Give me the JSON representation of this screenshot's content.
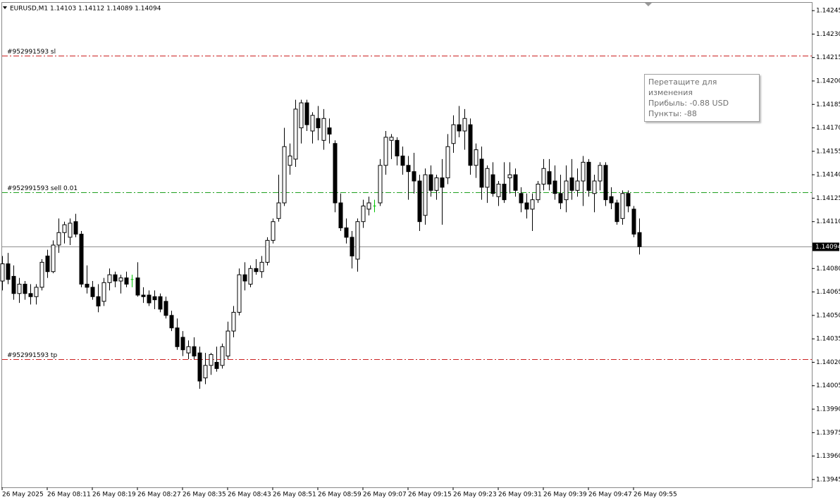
{
  "chart_data": {
    "type": "candlestick",
    "title": "EURUSD,M1  1.14103 1.14112 1.14089 1.14094",
    "categories": [
      "26 May 2025",
      null,
      null,
      null,
      null,
      null,
      null,
      null,
      "26 May 08:11",
      null,
      null,
      null,
      null,
      null,
      null,
      null,
      "26 May 08:19",
      null,
      null,
      null,
      null,
      null,
      null,
      null,
      "26 May 08:27",
      null,
      null,
      null,
      null,
      null,
      null,
      null,
      "26 May 08:35",
      null,
      null,
      null,
      null,
      null,
      null,
      null,
      "26 May 08:43",
      null,
      null,
      null,
      null,
      null,
      null,
      null,
      "26 May 08:51",
      null,
      null,
      null,
      null,
      null,
      null,
      null,
      "26 May 08:59",
      null,
      null,
      null,
      null,
      null,
      null,
      null,
      "26 May 09:07",
      null,
      null,
      null,
      null,
      null,
      null,
      null,
      "26 May 09:15",
      null,
      null,
      null,
      null,
      null,
      null,
      null,
      "26 May 09:23",
      null,
      null,
      null,
      null,
      null,
      null,
      null,
      "26 May 09:31",
      null,
      null,
      null,
      null,
      null,
      null,
      null,
      "26 May 09:39",
      null,
      null,
      null,
      null,
      null,
      null,
      null,
      "26 May 09:47",
      null,
      null,
      null,
      null,
      null,
      null,
      null,
      "26 May 09:55",
      null
    ],
    "open": [
      1.14072,
      1.14083,
      1.14075,
      1.14064,
      1.1407,
      1.14064,
      1.14062,
      1.14068,
      1.14088,
      1.14078,
      1.14095,
      1.14103,
      1.141,
      1.1411,
      1.14102,
      1.1407,
      1.14068,
      1.14062,
      1.14059,
      1.14071,
      1.14076,
      1.14072,
      1.14074,
      1.14073,
      1.14074,
      1.14063,
      1.14063,
      1.14062,
      1.14062,
      1.14059,
      1.1405,
      1.14042,
      1.14036,
      1.14026,
      1.1403,
      1.14026,
      1.1401,
      1.14018,
      1.1402,
      1.14018,
      1.14024,
      1.1404,
      1.14052,
      1.14076,
      1.1407,
      1.1408,
      1.14078,
      1.14084,
      1.14098,
      1.14112,
      1.14122,
      1.14146,
      1.1415,
      1.1417,
      1.14186,
      1.14168,
      1.14176,
      1.14162,
      1.1417,
      1.1416,
      1.14122,
      1.14106,
      1.141,
      1.14086,
      1.1411,
      1.14118,
      1.1412,
      1.14122,
      1.14146,
      1.14162,
      1.14162,
      1.14152,
      1.14146,
      1.14142,
      1.14136,
      1.14114,
      1.1414,
      1.1413,
      1.14138,
      1.14138,
      1.1416,
      1.14172,
      1.14168,
      1.14172,
      1.14146,
      1.1415,
      1.14132,
      1.1414,
      1.14126,
      1.14134,
      1.14138,
      1.1414,
      1.14128,
      1.14122,
      1.14118,
      1.14124,
      1.14134,
      1.14142,
      1.14136,
      1.14128,
      1.14124,
      1.14138,
      1.1413,
      1.14136,
      1.14148,
      1.14128,
      1.14136,
      1.14146,
      1.14126,
      1.14122,
      1.14112,
      1.14128,
      1.14118,
      1.14103
    ],
    "high": [
      1.14088,
      1.1409,
      1.14082,
      1.14074,
      1.14072,
      1.1407,
      1.1407,
      1.14086,
      1.14092,
      1.14098,
      1.14112,
      1.1411,
      1.14112,
      1.14115,
      1.14104,
      1.14082,
      1.14072,
      1.1407,
      1.14074,
      1.1408,
      1.14078,
      1.14076,
      1.14078,
      1.14076,
      1.14084,
      1.14068,
      1.14066,
      1.14066,
      1.14064,
      1.14062,
      1.14053,
      1.14048,
      1.1404,
      1.14034,
      1.14036,
      1.1403,
      1.14026,
      1.14026,
      1.1403,
      1.14032,
      1.14046,
      1.14056,
      1.1408,
      1.14084,
      1.14082,
      1.14086,
      1.14088,
      1.141,
      1.14112,
      1.1414,
      1.1417,
      1.1416,
      1.14188,
      1.14188,
      1.14188,
      1.1418,
      1.14184,
      1.14182,
      1.14176,
      1.14162,
      1.14128,
      1.14112,
      1.14104,
      1.14112,
      1.14124,
      1.14126,
      1.14124,
      1.1415,
      1.14168,
      1.14166,
      1.14164,
      1.14158,
      1.14152,
      1.14154,
      1.1414,
      1.14144,
      1.14146,
      1.1414,
      1.1415,
      1.14166,
      1.14178,
      1.14184,
      1.14182,
      1.14176,
      1.1416,
      1.14158,
      1.14146,
      1.14148,
      1.14136,
      1.14148,
      1.14148,
      1.14144,
      1.14132,
      1.14128,
      1.14128,
      1.14136,
      1.1415,
      1.1415,
      1.14146,
      1.1414,
      1.14146,
      1.1415,
      1.14144,
      1.14152,
      1.1415,
      1.1414,
      1.14148,
      1.14148,
      1.14132,
      1.14124,
      1.1413,
      1.1413,
      1.1412,
      1.14112
    ],
    "low": [
      1.14066,
      1.1407,
      1.1406,
      1.14058,
      1.1406,
      1.14057,
      1.14057,
      1.14066,
      1.14074,
      1.14077,
      1.1409,
      1.14096,
      1.14095,
      1.141,
      1.14068,
      1.14064,
      1.1406,
      1.14052,
      1.14056,
      1.14066,
      1.14068,
      1.14064,
      1.14068,
      1.14068,
      1.14062,
      1.14058,
      1.14056,
      1.14054,
      1.14052,
      1.14048,
      1.1404,
      1.14028,
      1.14024,
      1.14022,
      1.14022,
      1.14003,
      1.14006,
      1.14012,
      1.14014,
      1.14016,
      1.14022,
      1.14036,
      1.1405,
      1.14066,
      1.14068,
      1.14076,
      1.14074,
      1.14082,
      1.14096,
      1.1411,
      1.1412,
      1.1414,
      1.14145,
      1.1416,
      1.14168,
      1.1416,
      1.14162,
      1.14156,
      1.1416,
      1.14116,
      1.14104,
      1.14096,
      1.1408,
      1.14078,
      1.14106,
      1.14114,
      1.14116,
      1.1412,
      1.1414,
      1.1415,
      1.14146,
      1.1414,
      1.14124,
      1.14128,
      1.14104,
      1.14108,
      1.14126,
      1.14124,
      1.14108,
      1.14134,
      1.14154,
      1.14164,
      1.14156,
      1.1414,
      1.14138,
      1.14124,
      1.14122,
      1.14126,
      1.1412,
      1.14122,
      1.14128,
      1.14126,
      1.14116,
      1.14112,
      1.14104,
      1.14122,
      1.1413,
      1.1413,
      1.14124,
      1.14118,
      1.14116,
      1.14124,
      1.14126,
      1.1412,
      1.14126,
      1.14116,
      1.1413,
      1.1412,
      1.14118,
      1.14108,
      1.14108,
      1.14116,
      1.141,
      1.14089
    ],
    "close": [
      1.14083,
      1.14073,
      1.14064,
      1.1407,
      1.14064,
      1.14062,
      1.14068,
      1.14084,
      1.14078,
      1.14095,
      1.14103,
      1.14108,
      1.14109,
      1.14102,
      1.1407,
      1.14068,
      1.14062,
      1.14056,
      1.14071,
      1.14076,
      1.14072,
      1.14074,
      1.1407,
      1.14073,
      1.14063,
      1.14062,
      1.14058,
      1.1406,
      1.14054,
      1.1405,
      1.14042,
      1.1403,
      1.14028,
      1.1403,
      1.14024,
      1.14008,
      1.14018,
      1.14025,
      1.14016,
      1.1403,
      1.1404,
      1.14052,
      1.14076,
      1.14072,
      1.1408,
      1.14078,
      1.14084,
      1.14098,
      1.1411,
      1.14122,
      1.14158,
      1.14152,
      1.14182,
      1.14186,
      1.14172,
      1.14178,
      1.1417,
      1.14176,
      1.14166,
      1.14122,
      1.14106,
      1.141,
      1.14088,
      1.1411,
      1.1412,
      1.14122,
      1.1412,
      1.14146,
      1.14164,
      1.14164,
      1.14152,
      1.14146,
      1.14142,
      1.14136,
      1.1411,
      1.1414,
      1.1413,
      1.14138,
      1.14132,
      1.14158,
      1.14172,
      1.14168,
      1.14176,
      1.14146,
      1.14156,
      1.14132,
      1.14144,
      1.14128,
      1.14134,
      1.14124,
      1.1414,
      1.1413,
      1.14122,
      1.14118,
      1.14124,
      1.14134,
      1.14144,
      1.14134,
      1.14128,
      1.14122,
      1.14136,
      1.1413,
      1.14136,
      1.14148,
      1.1413,
      1.14136,
      1.14146,
      1.14124,
      1.14122,
      1.1411,
      1.14128,
      1.1412,
      1.14102,
      1.14094
    ],
    "up_color": "#ffffff",
    "down_color": "#000000",
    "outline_color": "#000000",
    "doji_color": "#00c000",
    "ylim": [
      1.1394,
      1.1425
    ],
    "yticks": [
      1.14245,
      {
        "value": 1.1423,
        "label": "1.14230"
      },
      1.14215,
      {
        "value": 1.142,
        "label": "1.14200"
      },
      1.14185,
      {
        "value": 1.1417,
        "label": "1.14170"
      },
      1.14155,
      {
        "value": 1.1414,
        "label": "1.14140"
      },
      1.14125,
      {
        "value": 1.1411,
        "label": "1.14110"
      },
      {
        "value": 1.1408,
        "label": "1.14080"
      },
      1.14065,
      {
        "value": 1.1405,
        "label": "1.14050"
      },
      1.14035,
      {
        "value": 1.1402,
        "label": "1.14020"
      },
      1.14005,
      {
        "value": 1.1399,
        "label": "1.13990"
      },
      1.13975,
      {
        "value": 1.1396,
        "label": "1.13960"
      },
      1.13945
    ],
    "grid": false,
    "bid": 1.14094,
    "levels": [
      {
        "label": "#952991593 sl",
        "value": 1.14216,
        "color": "#cc2020"
      },
      {
        "label": "#952991593 sell 0.01",
        "value": 1.14129,
        "color": "#20a020"
      },
      {
        "label": "#952991593 tp",
        "value": 1.14022,
        "color": "#cc2020"
      }
    ]
  },
  "tooltip": [
    "Перетащите для изменения",
    "Прибыль: -0.88 USD",
    "Пункты: -88"
  ]
}
